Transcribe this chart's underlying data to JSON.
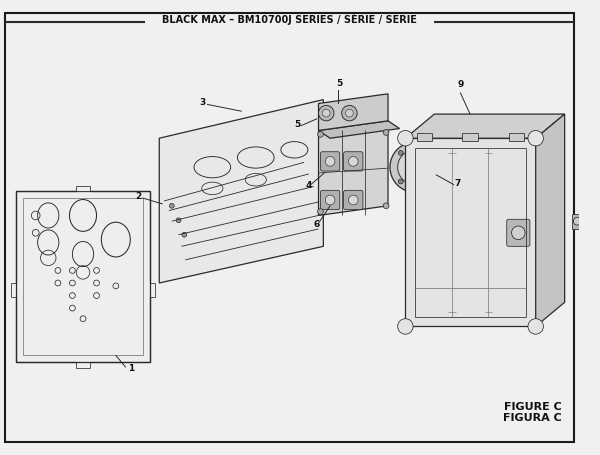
{
  "title": "BLACK MAX – BM10700J SERIES / SÉRIE / SERIE",
  "figure_label": "FIGURE C",
  "figura_label": "FIGURA C",
  "bg_color": "#f0f0f0",
  "border_color": "#1a1a1a",
  "line_color": "#2a2a2a",
  "text_color": "#111111",
  "gray_fill": "#c8c8c8",
  "light_gray": "#e0e0e0"
}
